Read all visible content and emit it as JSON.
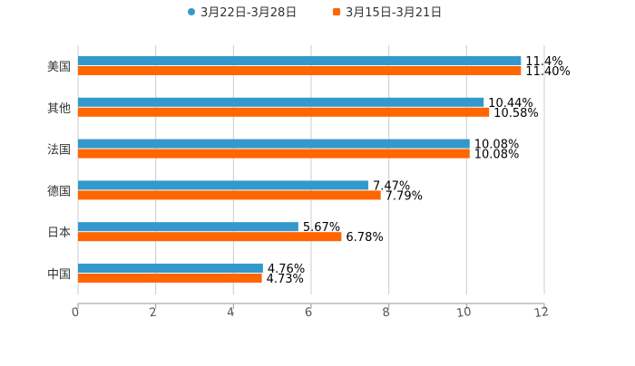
{
  "chart_data": {
    "type": "bar",
    "orientation": "horizontal",
    "title": "",
    "xlabel": "",
    "ylabel": "",
    "categories": [
      "美国",
      "其他",
      "法国",
      "德国",
      "日本",
      "中国"
    ],
    "series": [
      {
        "name": "3月22日-3月28日",
        "color": "#3399cc",
        "values": [
          11.4,
          10.44,
          10.08,
          7.47,
          5.67,
          4.76
        ],
        "labels": [
          "11.4%",
          "10.44%",
          "10.08%",
          "7.47%",
          "5.67%",
          "4.76%"
        ]
      },
      {
        "name": "3月15日-3月21日",
        "color": "#ff6600",
        "values": [
          11.4,
          10.58,
          10.08,
          7.79,
          6.78,
          4.73
        ],
        "labels": [
          "11.40%",
          "10.58%",
          "10.08%",
          "7.79%",
          "6.78%",
          "4.73%"
        ]
      }
    ],
    "xlim": [
      0,
      12
    ],
    "xticks": [
      "0",
      "2",
      "4",
      "6",
      "8",
      "10",
      "12"
    ],
    "grid": true,
    "legend_position": "top-center"
  }
}
